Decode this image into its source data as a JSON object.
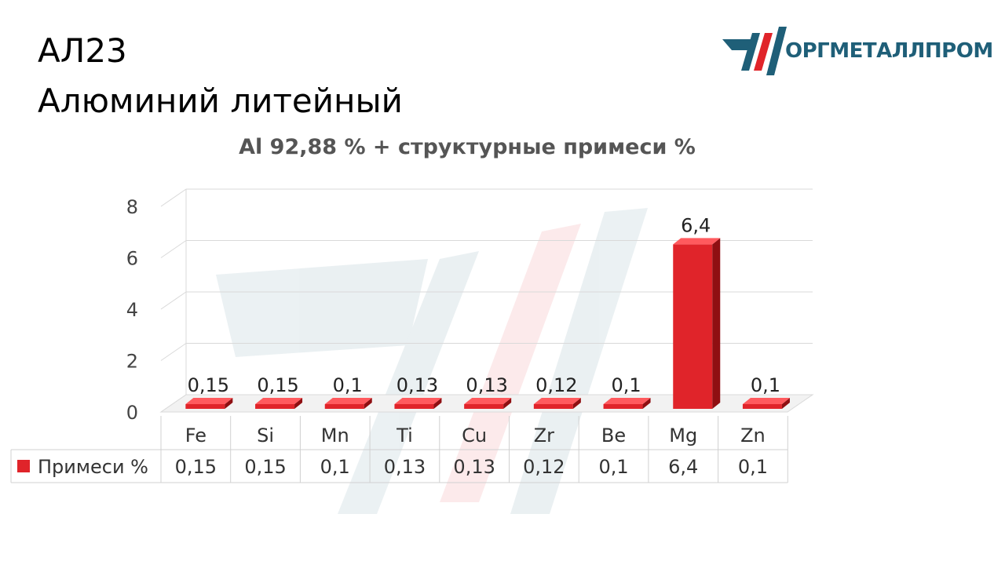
{
  "header": {
    "line1": "АЛ23",
    "line2": "Алюминий литейный"
  },
  "logo": {
    "text": "ОРГМЕТАЛЛПРОМ",
    "colors": {
      "teal": "#1f5f78",
      "red": "#e0242a"
    }
  },
  "chart_data": {
    "type": "bar",
    "title": "Al 92,88 % + структурные примеси %",
    "categories": [
      "Fe",
      "Si",
      "Mn",
      "Ti",
      "Cu",
      "Zr",
      "Be",
      "Mg",
      "Zn"
    ],
    "series": [
      {
        "name": "Примеси %",
        "values": [
          0.15,
          0.15,
          0.1,
          0.13,
          0.13,
          0.12,
          0.1,
          6.4,
          0.1
        ],
        "labels": [
          "0,15",
          "0,15",
          "0,1",
          "0,13",
          "0,13",
          "0,12",
          "0,1",
          "6,4",
          "0,1"
        ],
        "color": "#e0242a"
      }
    ],
    "yticks": [
      "0",
      "2",
      "4",
      "6",
      "8"
    ],
    "ylim": [
      0,
      8
    ],
    "grid": true,
    "data_table": true
  }
}
